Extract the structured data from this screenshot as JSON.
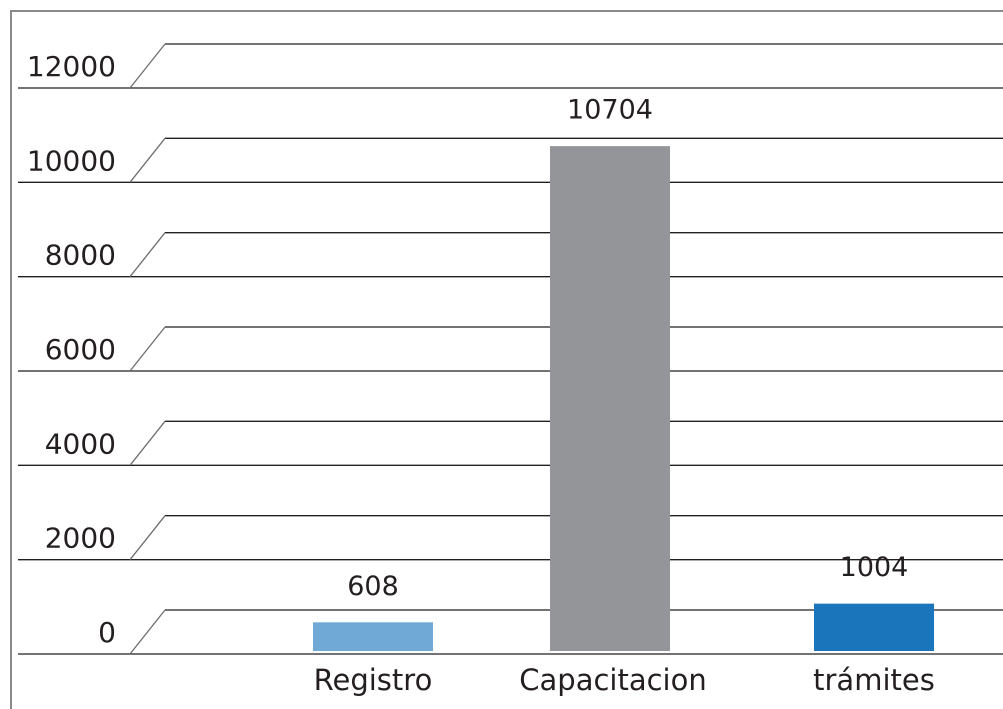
{
  "chart_data": {
    "type": "bar",
    "categories": [
      "Registro",
      "Capacitacion",
      "trámites"
    ],
    "values": [
      608,
      10704,
      1004
    ],
    "colors": [
      "#71a9d6",
      "#939598",
      "#1b75bb"
    ],
    "ylim": [
      0,
      12000
    ],
    "yticks": [
      0,
      2000,
      4000,
      6000,
      8000,
      10000,
      12000
    ],
    "grid": true
  }
}
